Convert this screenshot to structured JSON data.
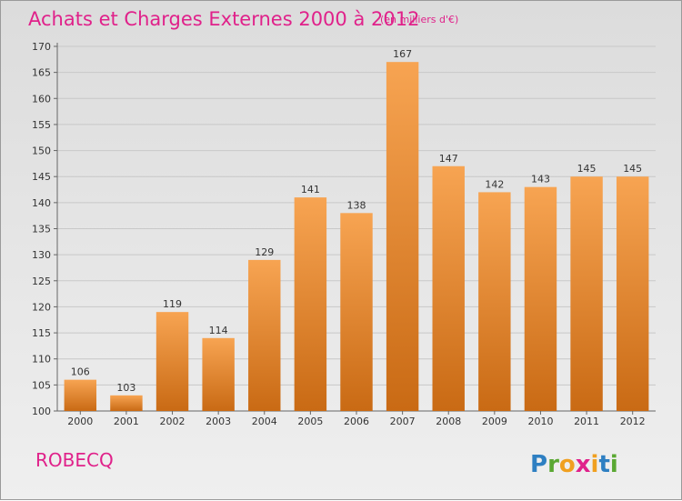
{
  "chart_data": {
    "type": "bar",
    "title": "Achats et Charges Externes 2000 à 2012",
    "subtitle": "(en milliers d'€)",
    "categories": [
      "2000",
      "2001",
      "2002",
      "2003",
      "2004",
      "2005",
      "2006",
      "2007",
      "2008",
      "2009",
      "2010",
      "2011",
      "2012"
    ],
    "values": [
      106,
      103,
      119,
      114,
      129,
      141,
      138,
      167,
      147,
      142,
      143,
      145,
      145
    ],
    "ylim": [
      100,
      170
    ],
    "yticks": [
      100,
      105,
      110,
      115,
      120,
      125,
      130,
      135,
      140,
      145,
      150,
      155,
      160,
      165,
      170
    ],
    "grid": true,
    "bar_color": "#f28b2c"
  },
  "place_name": "ROBECQ",
  "logo": {
    "letters": [
      "P",
      "r",
      "o",
      "x",
      "i",
      "t",
      "i"
    ],
    "colors": [
      "#2e7fc2",
      "#5aa832",
      "#f0a020",
      "#e0218a",
      "#f0a020",
      "#2e7fc2",
      "#5aa832"
    ]
  }
}
